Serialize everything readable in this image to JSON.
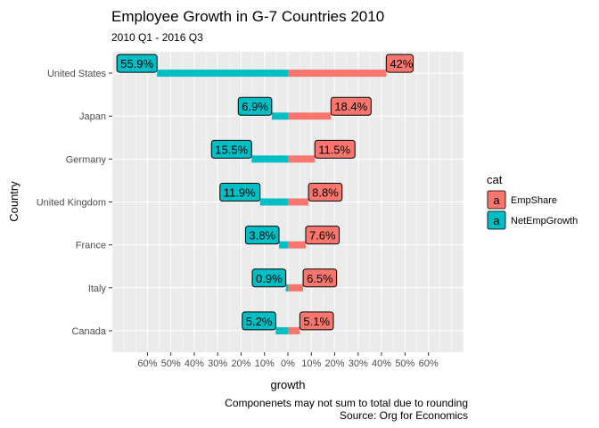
{
  "chart_data": {
    "type": "bar",
    "orientation": "horizontal-diverging",
    "title": "Employee Growth in G-7 Countries 2010",
    "subtitle": "2010 Q1 - 2016 Q3",
    "xlabel": "growth",
    "ylabel": "Country",
    "caption_lines": [
      "Componenets may not sum to total due to rounding",
      "Source: Org for Economics"
    ],
    "categories": [
      "United States",
      "Japan",
      "Germany",
      "United Kingdom",
      "France",
      "Italy",
      "Canada"
    ],
    "xlim": [
      -0.75,
      0.75
    ],
    "x_ticks": [
      -0.6,
      -0.5,
      -0.4,
      -0.3,
      -0.2,
      -0.1,
      0,
      0.1,
      0.2,
      0.3,
      0.4,
      0.5,
      0.6
    ],
    "x_tick_labels": [
      "60%",
      "50%",
      "40%",
      "30%",
      "20%",
      "10%",
      "0%",
      "10%",
      "20%",
      "30%",
      "40%",
      "50%",
      "60%"
    ],
    "grid": true,
    "legend": {
      "title": "cat",
      "position": "right",
      "key_glyph": "a"
    },
    "series": [
      {
        "name": "EmpShare",
        "color": "#F8766D",
        "values": [
          0.42,
          0.184,
          0.115,
          0.088,
          0.076,
          0.065,
          0.051
        ],
        "labels": [
          "42%",
          "18.4%",
          "11.5%",
          "8.8%",
          "7.6%",
          "6.5%",
          "5.1%"
        ]
      },
      {
        "name": "NetEmpGrowth",
        "color": "#00BFC4",
        "values": [
          -0.559,
          -0.069,
          -0.155,
          -0.119,
          -0.038,
          -0.009,
          -0.052
        ],
        "labels": [
          "55.9%",
          "6.9%",
          "15.5%",
          "11.9%",
          "3.8%",
          "0.9%",
          "5.2%"
        ]
      }
    ]
  }
}
